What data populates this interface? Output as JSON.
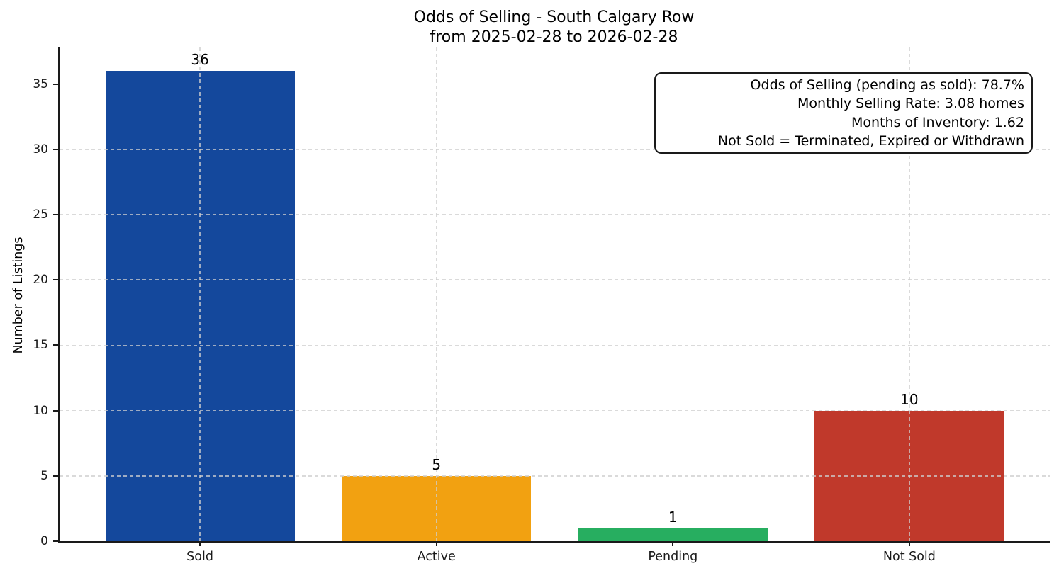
{
  "chart_data": {
    "type": "bar",
    "title": "Odds of Selling - South Calgary Row",
    "subtitle": "from 2025-02-28 to 2026-02-28",
    "categories": [
      "Sold",
      "Active",
      "Pending",
      "Not Sold"
    ],
    "values": [
      36,
      5,
      1,
      10
    ],
    "bar_colors": [
      "#14489c",
      "#f2a111",
      "#27ae60",
      "#c0392b"
    ],
    "value_labels": [
      "36",
      "5",
      "1",
      "10"
    ],
    "xlabel": "",
    "ylabel": "Number of Listings",
    "ylim": [
      0,
      37.8
    ],
    "yticks": [
      0,
      5,
      10,
      15,
      20,
      25,
      30,
      35
    ],
    "bar_width_fraction": 0.8,
    "grid": "dashed light-gray horizontal lines at y ticks and vertical lines at category centers, drawn over bars",
    "legend_position": "none",
    "annotation": {
      "lines": [
        "Odds of Selling (pending as sold): 78.7%",
        "Monthly Selling Rate: 3.08 homes",
        "Months of Inventory: 1.62",
        "Not Sold = Terminated, Expired or Withdrawn"
      ]
    },
    "colors": {
      "background": "#ffffff",
      "axis": "#1a1a1a",
      "gridline": "#cecece",
      "text": "#000000"
    }
  }
}
